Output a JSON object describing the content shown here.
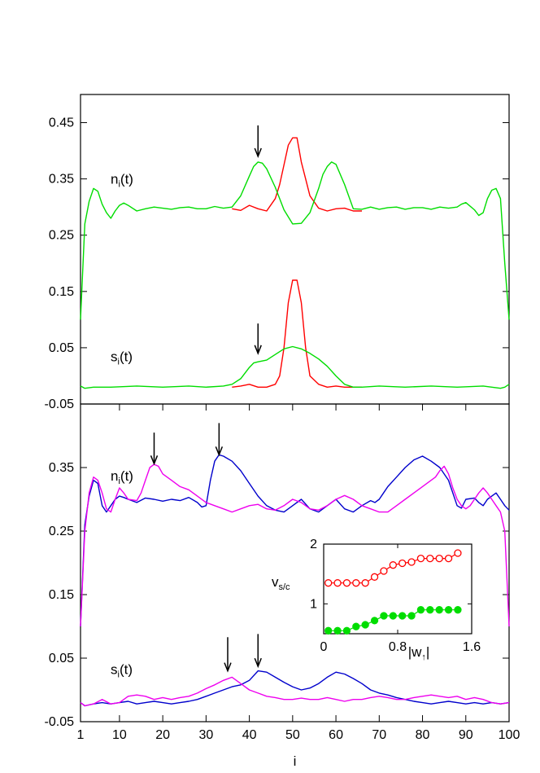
{
  "chart_data": [
    {
      "type": "line",
      "panel": "top",
      "xlim": [
        1,
        100
      ],
      "ylim": [
        -0.05,
        0.5
      ],
      "ytick_labels": [
        "-0.05",
        "0.05",
        "0.15",
        "0.25",
        "0.35",
        "0.45"
      ],
      "yticks": [
        -0.05,
        0.05,
        0.15,
        0.25,
        0.35,
        0.45
      ],
      "labels": [
        {
          "main": "n",
          "sub": "i",
          "rest": "(t)",
          "x": 7,
          "y": 0.35
        },
        {
          "main": "s",
          "sub": "i",
          "rest": "(t)",
          "x": 7,
          "y": 0.035
        }
      ],
      "arrows": [
        {
          "x": 42,
          "y_from": 0.445,
          "y_to": 0.39
        },
        {
          "x": 42,
          "y_from": 0.093,
          "y_to": 0.04
        }
      ],
      "series": [
        {
          "color": "#ff0000",
          "x": [
            36,
            38,
            40,
            42,
            44,
            46,
            47,
            48,
            49,
            50,
            51,
            52,
            53,
            54,
            56,
            58,
            60,
            62,
            64,
            66
          ],
          "y": [
            0.297,
            0.294,
            0.303,
            0.297,
            0.293,
            0.315,
            0.34,
            0.375,
            0.41,
            0.423,
            0.423,
            0.38,
            0.35,
            0.32,
            0.298,
            0.293,
            0.297,
            0.298,
            0.293,
            0.293
          ]
        },
        {
          "color": "#00dd00",
          "x": [
            1,
            2,
            3,
            4,
            5,
            6,
            7,
            8,
            9,
            10,
            11,
            12,
            14,
            16,
            18,
            20,
            22,
            24,
            26,
            28,
            30,
            32,
            34,
            36,
            38,
            40,
            41,
            42,
            43,
            44,
            46,
            48,
            50,
            52,
            54,
            56,
            57,
            58,
            59,
            60,
            62,
            64,
            66,
            68,
            70,
            72,
            74,
            76,
            78,
            80,
            82,
            84,
            86,
            88,
            89,
            90,
            92,
            93,
            94,
            95,
            96,
            97,
            98,
            99,
            100
          ],
          "y": [
            0.1,
            0.27,
            0.31,
            0.333,
            0.328,
            0.305,
            0.29,
            0.28,
            0.293,
            0.303,
            0.307,
            0.303,
            0.293,
            0.297,
            0.3,
            0.298,
            0.296,
            0.299,
            0.3,
            0.297,
            0.297,
            0.301,
            0.298,
            0.3,
            0.32,
            0.355,
            0.372,
            0.38,
            0.378,
            0.368,
            0.335,
            0.295,
            0.27,
            0.271,
            0.29,
            0.333,
            0.358,
            0.372,
            0.38,
            0.376,
            0.34,
            0.297,
            0.296,
            0.3,
            0.296,
            0.299,
            0.3,
            0.296,
            0.299,
            0.299,
            0.296,
            0.3,
            0.298,
            0.3,
            0.305,
            0.308,
            0.295,
            0.285,
            0.29,
            0.315,
            0.33,
            0.333,
            0.315,
            0.2,
            0.1
          ]
        },
        {
          "color": "#ff0000",
          "x": [
            36,
            38,
            40,
            42,
            44,
            46,
            47,
            48,
            49,
            50,
            51,
            52,
            53,
            54,
            56,
            58,
            60,
            62,
            64,
            66
          ],
          "y": [
            -0.02,
            -0.018,
            -0.015,
            -0.02,
            -0.02,
            -0.015,
            0.0,
            0.05,
            0.13,
            0.17,
            0.17,
            0.13,
            0.05,
            0.0,
            -0.015,
            -0.02,
            -0.018,
            -0.02,
            -0.02,
            -0.02
          ]
        },
        {
          "color": "#00dd00",
          "x": [
            1,
            2,
            4,
            8,
            14,
            20,
            26,
            30,
            34,
            36,
            38,
            40,
            41,
            42,
            44,
            46,
            48,
            50,
            52,
            54,
            56,
            58,
            60,
            62,
            64,
            66,
            70,
            76,
            82,
            88,
            94,
            98,
            99,
            100
          ],
          "y": [
            -0.018,
            -0.022,
            -0.02,
            -0.02,
            -0.018,
            -0.02,
            -0.018,
            -0.02,
            -0.018,
            -0.015,
            -0.005,
            0.015,
            0.023,
            0.025,
            0.028,
            0.038,
            0.048,
            0.052,
            0.048,
            0.04,
            0.03,
            0.017,
            0.0,
            -0.015,
            -0.02,
            -0.02,
            -0.018,
            -0.02,
            -0.018,
            -0.02,
            -0.018,
            -0.022,
            -0.02,
            -0.015
          ]
        }
      ]
    },
    {
      "type": "line",
      "panel": "bottom",
      "xlim": [
        1,
        100
      ],
      "ylim": [
        -0.05,
        0.45
      ],
      "xlabel": "i",
      "xtick_labels": [
        "1",
        "10",
        "20",
        "30",
        "40",
        "50",
        "60",
        "70",
        "80",
        "90",
        "100"
      ],
      "xticks": [
        1,
        10,
        20,
        30,
        40,
        50,
        60,
        70,
        80,
        90,
        100
      ],
      "ytick_labels": [
        "-0.05",
        "0.05",
        "0.15",
        "0.25",
        "0.35"
      ],
      "yticks": [
        -0.05,
        0.05,
        0.15,
        0.25,
        0.35
      ],
      "labels": [
        {
          "main": "n",
          "sub": "i",
          "rest": "(t)",
          "x": 7,
          "y": 0.337
        },
        {
          "main": "s",
          "sub": "i",
          "rest": "(t)",
          "x": 7,
          "y": 0.033
        }
      ],
      "arrows": [
        {
          "x": 18,
          "y_from": 0.405,
          "y_to": 0.356
        },
        {
          "x": 33,
          "y_from": 0.42,
          "y_to": 0.37
        },
        {
          "x": 35,
          "y_from": 0.083,
          "y_to": 0.03
        },
        {
          "x": 42,
          "y_from": 0.088,
          "y_to": 0.037
        }
      ],
      "series": [
        {
          "color": "#0000cc",
          "x": [
            1,
            2,
            3,
            4,
            5,
            6,
            7,
            8,
            9,
            10,
            11,
            12,
            14,
            16,
            18,
            20,
            22,
            24,
            26,
            28,
            29,
            30,
            31,
            32,
            33,
            34,
            36,
            38,
            40,
            42,
            44,
            46,
            48,
            50,
            52,
            54,
            56,
            58,
            60,
            62,
            64,
            66,
            68,
            69,
            70,
            71,
            72,
            74,
            76,
            78,
            80,
            82,
            84,
            86,
            88,
            89,
            90,
            92,
            93,
            94,
            95,
            96,
            97,
            98,
            99,
            100
          ],
          "y": [
            0.1,
            0.26,
            0.305,
            0.33,
            0.325,
            0.29,
            0.28,
            0.29,
            0.3,
            0.305,
            0.303,
            0.3,
            0.295,
            0.302,
            0.3,
            0.297,
            0.3,
            0.298,
            0.303,
            0.295,
            0.288,
            0.29,
            0.33,
            0.36,
            0.37,
            0.368,
            0.36,
            0.345,
            0.325,
            0.305,
            0.29,
            0.283,
            0.28,
            0.29,
            0.3,
            0.285,
            0.28,
            0.29,
            0.3,
            0.285,
            0.28,
            0.29,
            0.298,
            0.295,
            0.3,
            0.31,
            0.32,
            0.335,
            0.35,
            0.362,
            0.368,
            0.36,
            0.35,
            0.33,
            0.29,
            0.286,
            0.3,
            0.302,
            0.295,
            0.29,
            0.3,
            0.305,
            0.31,
            0.3,
            0.29,
            0.283
          ]
        },
        {
          "color": "#ee00ee",
          "x": [
            1,
            2,
            3,
            4,
            5,
            6,
            7,
            8,
            9,
            10,
            11,
            12,
            14,
            15,
            16,
            17,
            18,
            19,
            20,
            22,
            24,
            26,
            28,
            30,
            32,
            34,
            36,
            38,
            40,
            42,
            44,
            46,
            48,
            50,
            52,
            54,
            56,
            58,
            60,
            62,
            64,
            66,
            68,
            70,
            72,
            74,
            76,
            78,
            80,
            82,
            83,
            84,
            85,
            86,
            87,
            88,
            89,
            90,
            91,
            92,
            93,
            94,
            95,
            96,
            97,
            98,
            99,
            100
          ],
          "y": [
            0.1,
            0.25,
            0.31,
            0.335,
            0.33,
            0.31,
            0.285,
            0.28,
            0.3,
            0.318,
            0.31,
            0.3,
            0.298,
            0.31,
            0.33,
            0.35,
            0.355,
            0.352,
            0.34,
            0.33,
            0.32,
            0.315,
            0.305,
            0.295,
            0.29,
            0.285,
            0.28,
            0.285,
            0.29,
            0.292,
            0.285,
            0.283,
            0.29,
            0.3,
            0.295,
            0.285,
            0.283,
            0.29,
            0.3,
            0.306,
            0.3,
            0.29,
            0.285,
            0.28,
            0.28,
            0.29,
            0.3,
            0.31,
            0.32,
            0.33,
            0.335,
            0.345,
            0.352,
            0.34,
            0.318,
            0.3,
            0.29,
            0.285,
            0.29,
            0.3,
            0.31,
            0.318,
            0.31,
            0.3,
            0.29,
            0.28,
            0.25,
            0.1
          ]
        },
        {
          "color": "#0000cc",
          "x": [
            1,
            2,
            4,
            6,
            8,
            10,
            12,
            14,
            16,
            18,
            20,
            22,
            24,
            26,
            28,
            30,
            32,
            34,
            36,
            38,
            40,
            42,
            44,
            46,
            48,
            50,
            52,
            54,
            56,
            58,
            60,
            62,
            64,
            66,
            68,
            70,
            72,
            74,
            76,
            78,
            80,
            82,
            84,
            86,
            88,
            90,
            92,
            94,
            96,
            98,
            100
          ],
          "y": [
            -0.02,
            -0.025,
            -0.022,
            -0.02,
            -0.022,
            -0.02,
            -0.018,
            -0.022,
            -0.02,
            -0.018,
            -0.02,
            -0.022,
            -0.02,
            -0.018,
            -0.015,
            -0.01,
            -0.005,
            0.0,
            0.005,
            0.008,
            0.015,
            0.03,
            0.028,
            0.02,
            0.012,
            0.005,
            0.0,
            0.003,
            0.01,
            0.02,
            0.028,
            0.025,
            0.018,
            0.01,
            0.0,
            -0.005,
            -0.008,
            -0.012,
            -0.015,
            -0.018,
            -0.02,
            -0.022,
            -0.02,
            -0.018,
            -0.02,
            -0.022,
            -0.02,
            -0.022,
            -0.02,
            -0.022,
            -0.02
          ]
        },
        {
          "color": "#ee00ee",
          "x": [
            1,
            2,
            4,
            6,
            8,
            10,
            12,
            14,
            16,
            18,
            20,
            22,
            24,
            26,
            28,
            30,
            32,
            34,
            36,
            38,
            40,
            42,
            44,
            46,
            48,
            50,
            52,
            54,
            56,
            58,
            60,
            62,
            64,
            66,
            68,
            70,
            72,
            74,
            76,
            78,
            80,
            82,
            84,
            86,
            88,
            90,
            92,
            94,
            96,
            98,
            100
          ],
          "y": [
            -0.02,
            -0.025,
            -0.022,
            -0.015,
            -0.022,
            -0.02,
            -0.01,
            -0.008,
            -0.01,
            -0.015,
            -0.012,
            -0.015,
            -0.012,
            -0.01,
            -0.005,
            0.002,
            0.008,
            0.015,
            0.02,
            0.01,
            0.0,
            -0.005,
            -0.01,
            -0.012,
            -0.015,
            -0.015,
            -0.013,
            -0.015,
            -0.015,
            -0.012,
            -0.015,
            -0.018,
            -0.015,
            -0.015,
            -0.012,
            -0.01,
            -0.012,
            -0.015,
            -0.015,
            -0.012,
            -0.01,
            -0.008,
            -0.01,
            -0.012,
            -0.01,
            -0.015,
            -0.012,
            -0.015,
            -0.02,
            -0.022,
            -0.02
          ]
        }
      ]
    },
    {
      "type": "scatter",
      "panel": "inset",
      "xlim": [
        0,
        1.6
      ],
      "ylim": [
        0.5,
        2.0
      ],
      "ylabel": {
        "main": "v",
        "sub": "s/c"
      },
      "xlabel": {
        "main": "|w",
        "sub": "↑",
        "rest": "|"
      },
      "xtick_labels": [
        "0",
        "0.8",
        "1.6"
      ],
      "xticks": [
        0,
        0.8,
        1.6
      ],
      "ytick_labels": [
        "1",
        "2"
      ],
      "yticks": [
        1,
        2
      ],
      "series": [
        {
          "color": "#ff0000",
          "marker": "open-circle",
          "x": [
            0.05,
            0.15,
            0.25,
            0.35,
            0.45,
            0.55,
            0.65,
            0.75,
            0.85,
            0.95,
            1.05,
            1.15,
            1.25,
            1.35,
            1.45
          ],
          "y": [
            1.35,
            1.35,
            1.35,
            1.35,
            1.35,
            1.45,
            1.55,
            1.65,
            1.68,
            1.7,
            1.76,
            1.76,
            1.76,
            1.76,
            1.85
          ]
        },
        {
          "color": "#00dd00",
          "marker": "filled-circle",
          "x": [
            0.05,
            0.15,
            0.25,
            0.35,
            0.45,
            0.55,
            0.65,
            0.75,
            0.85,
            0.95,
            1.05,
            1.15,
            1.25,
            1.35,
            1.45
          ],
          "y": [
            0.55,
            0.55,
            0.55,
            0.62,
            0.65,
            0.72,
            0.8,
            0.8,
            0.8,
            0.8,
            0.9,
            0.9,
            0.9,
            0.9,
            0.9
          ]
        }
      ]
    }
  ]
}
